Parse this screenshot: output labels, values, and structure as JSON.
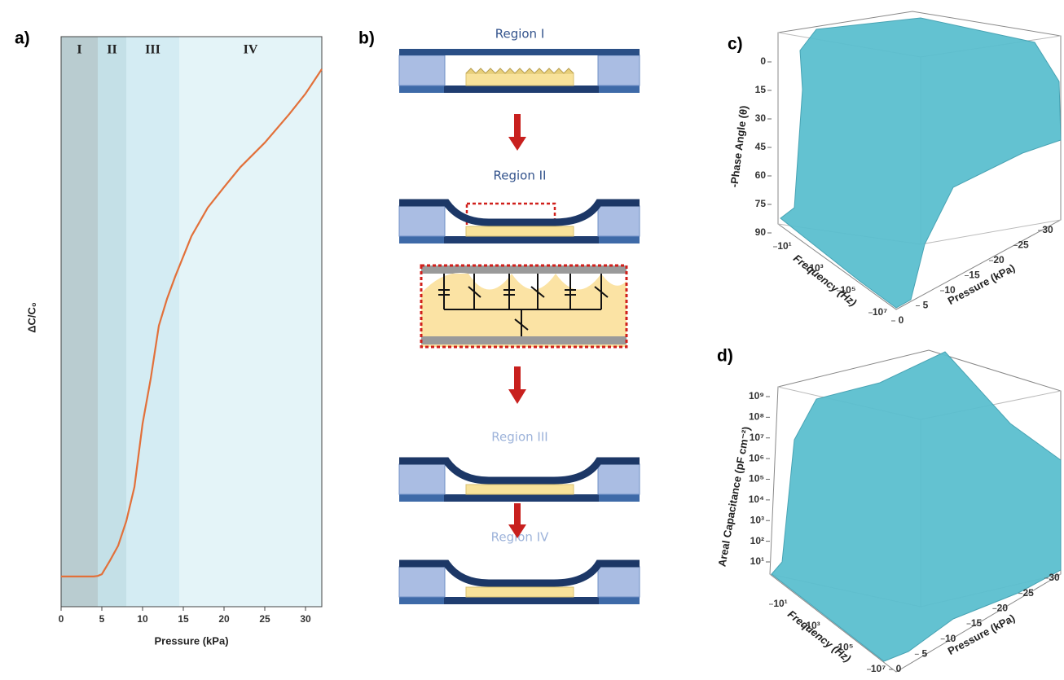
{
  "chart_data": [
    {
      "type": "line",
      "label": "a)",
      "xlabel": "Pressure (kPa)",
      "ylabel": "ΔC/C₀",
      "x": [
        0,
        2,
        4,
        4.5,
        5,
        6,
        7,
        8,
        9,
        10,
        11,
        12,
        13,
        14,
        16,
        18,
        20,
        22,
        25,
        28,
        30,
        32
      ],
      "y": [
        0.053,
        0.053,
        0.053,
        0.054,
        0.057,
        0.081,
        0.107,
        0.15,
        0.21,
        0.321,
        0.4,
        0.493,
        0.54,
        0.579,
        0.65,
        0.7,
        0.736,
        0.771,
        0.814,
        0.864,
        0.9,
        0.943
      ],
      "color": "#e2703a",
      "xlim": [
        0,
        32
      ],
      "ylim": [
        0,
        1
      ],
      "xticks": [
        0,
        5,
        10,
        15,
        20,
        25,
        30
      ],
      "bands": [
        {
          "label": "I",
          "range": [
            0,
            4.5
          ],
          "color": "#b9ccd0"
        },
        {
          "label": "II",
          "range": [
            4.5,
            8
          ],
          "color": "#c4e0e7"
        },
        {
          "label": "III",
          "range": [
            8,
            14.5
          ],
          "color": "#d4ecf3"
        },
        {
          "label": "IV",
          "range": [
            14.5,
            32
          ],
          "color": "#e4f4f8"
        }
      ]
    },
    {
      "type": "surface3d",
      "label": "c)",
      "zlabel": "-Phase Angle (θ)",
      "ylabel": "Frequency (Hz)",
      "xlabel": "Pressure (kPa)",
      "color": "#5bbfcf",
      "zlim": [
        0,
        90
      ],
      "zticks": [
        0,
        15,
        30,
        45,
        60,
        75,
        90
      ],
      "ylim": [
        10,
        10000000
      ],
      "yticks": [
        {
          "value": 10,
          "label": "10¹"
        },
        {
          "value": 1000,
          "label": "10³"
        },
        {
          "value": 100000,
          "label": "10⁵"
        },
        {
          "value": 10000000,
          "label": "10⁷"
        }
      ],
      "xlim": [
        0,
        30
      ],
      "xticks": [
        0,
        5,
        10,
        15,
        20,
        25,
        30
      ]
    },
    {
      "type": "surface3d",
      "label": "d)",
      "zlabel": "Areal Capacitance (pF cm⁻²)",
      "ylabel": "Frequency (Hz)",
      "xlabel": "Pressure (kPa)",
      "color": "#5bbfcf",
      "zlim": [
        10,
        1000000000
      ],
      "zlog": true,
      "zticks": [
        {
          "value": 10,
          "label": "10¹"
        },
        {
          "value": 100,
          "label": "10²"
        },
        {
          "value": 1000,
          "label": "10³"
        },
        {
          "value": 10000,
          "label": "10⁴"
        },
        {
          "value": 100000,
          "label": "10⁵"
        },
        {
          "value": 1000000,
          "label": "10⁶"
        },
        {
          "value": 10000000,
          "label": "10⁷"
        },
        {
          "value": 100000000,
          "label": "10⁸"
        },
        {
          "value": 1000000000,
          "label": "10⁹"
        }
      ],
      "ylim": [
        10,
        10000000
      ],
      "yticks": [
        {
          "value": 10,
          "label": "10¹"
        },
        {
          "value": 1000,
          "label": "10³"
        },
        {
          "value": 100000,
          "label": "10⁵"
        },
        {
          "value": 10000000,
          "label": "10⁷"
        }
      ],
      "xlim": [
        0,
        30
      ],
      "xticks": [
        0,
        5,
        10,
        15,
        20,
        25,
        30
      ]
    }
  ],
  "diagram": {
    "label": "b)",
    "regions": [
      "Region I",
      "Region II",
      "Region III",
      "Region IV"
    ]
  }
}
